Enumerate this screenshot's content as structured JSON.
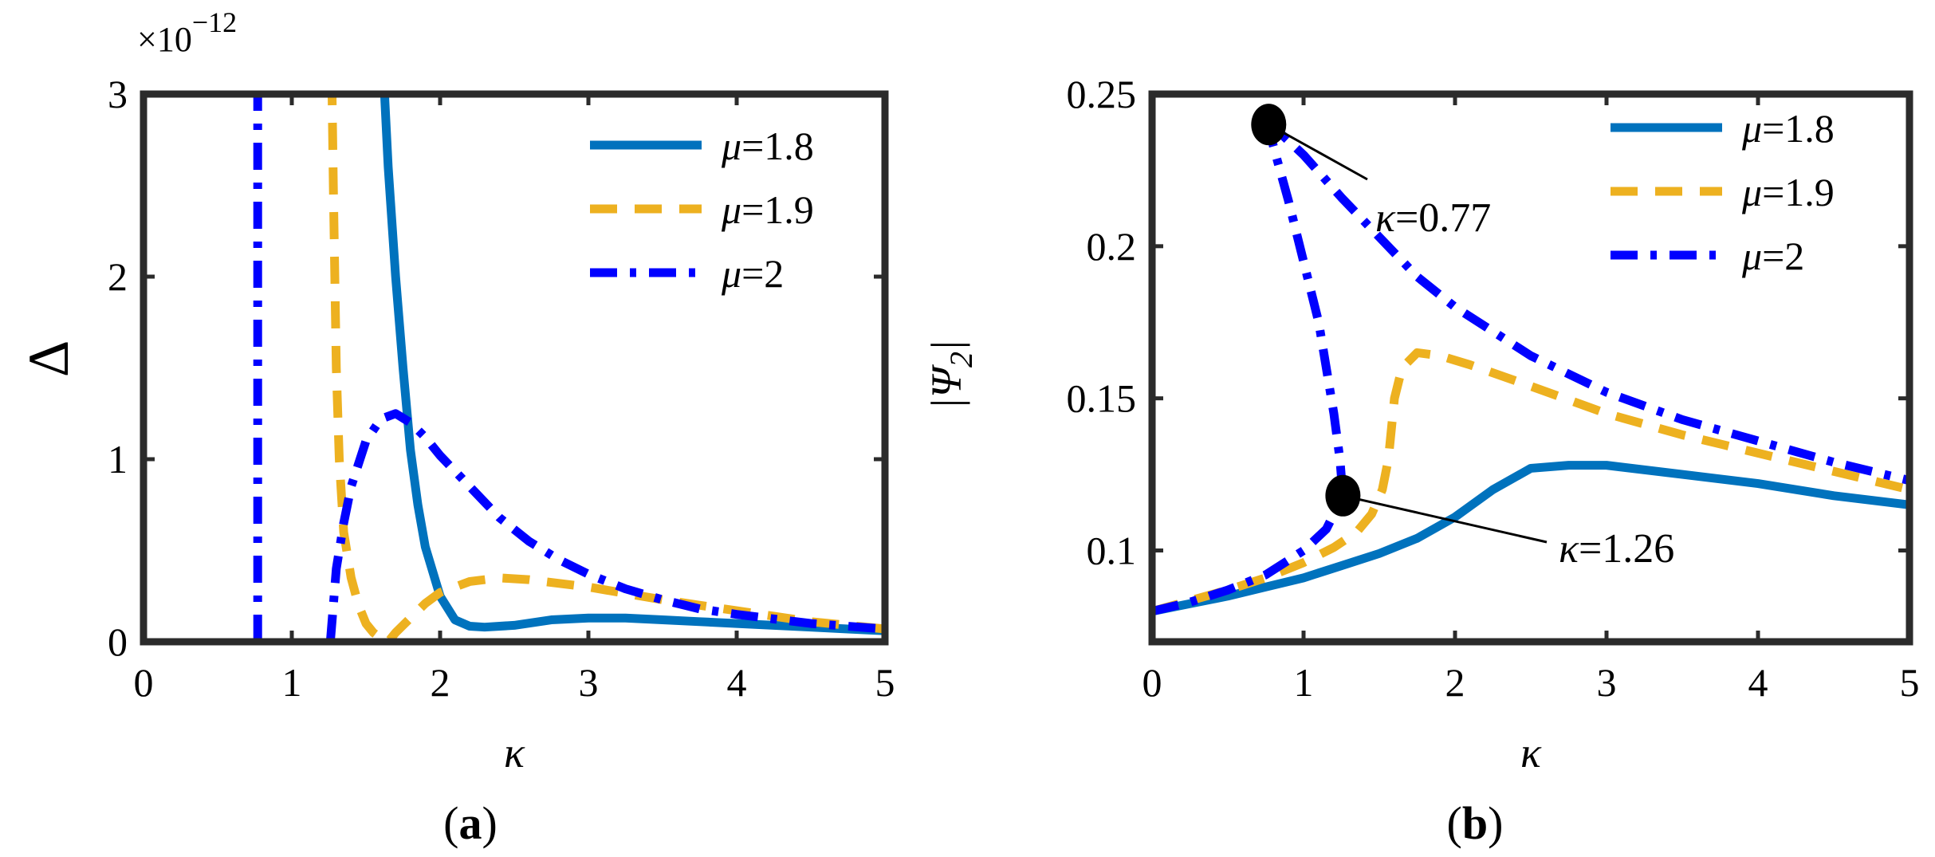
{
  "panels": [
    {
      "id": "a",
      "caption": "(a)",
      "xlabel": "κ",
      "ylabel": "Δ",
      "multiplier": "×10",
      "exponent": "−12",
      "xlim": [
        0,
        5
      ],
      "ylim": [
        0,
        3
      ],
      "xticks": [
        "0",
        "1",
        "2",
        "3",
        "4",
        "5"
      ],
      "yticks": [
        "0",
        "1",
        "2",
        "3"
      ],
      "legend": [
        "μ=1.8",
        "μ=1.9",
        "μ=2"
      ],
      "annotations": []
    },
    {
      "id": "b",
      "caption": "(b)",
      "xlabel": "κ",
      "ylabel": "|Ψ2|",
      "xlim": [
        0,
        5
      ],
      "ylim": [
        0.07,
        0.25
      ],
      "xticks": [
        "0",
        "1",
        "2",
        "3",
        "4",
        "5"
      ],
      "yticks": [
        "0.1",
        "0.15",
        "0.2",
        "0.25"
      ],
      "legend": [
        "μ=1.8",
        "μ=1.9",
        "μ=2"
      ],
      "annotations": [
        {
          "text": "κ=0.77",
          "x": 0.77,
          "y": 0.24
        },
        {
          "text": "κ=1.26",
          "x": 1.26,
          "y": 0.118
        }
      ]
    }
  ],
  "colors": {
    "mu18": "#0072BD",
    "mu19": "#EDB120",
    "mu2": "#0000FF"
  },
  "chart_data": [
    {
      "type": "line",
      "title": "",
      "xlabel": "κ",
      "ylabel": "Δ (×10^−12)",
      "xlim": [
        0,
        5
      ],
      "ylim": [
        0,
        3
      ],
      "grid": false,
      "legend_position": "top-right",
      "series": [
        {
          "name": "μ=1.8",
          "style": "solid",
          "x": [
            1.62,
            1.65,
            1.7,
            1.75,
            1.8,
            1.85,
            1.9,
            2.0,
            2.1,
            2.2,
            2.3,
            2.5,
            2.75,
            3.0,
            3.25,
            3.5,
            3.75,
            4.0,
            4.25,
            4.5,
            4.75,
            5.0
          ],
          "y": [
            3.0,
            2.6,
            2.0,
            1.5,
            1.05,
            0.75,
            0.52,
            0.25,
            0.12,
            0.085,
            0.08,
            0.09,
            0.12,
            0.13,
            0.13,
            0.12,
            0.11,
            0.1,
            0.09,
            0.08,
            0.07,
            0.06
          ]
        },
        {
          "name": "μ=1.9",
          "style": "dashed",
          "x": [
            1.27,
            1.28,
            1.29,
            1.3,
            1.32,
            1.35,
            1.4,
            1.45,
            1.5,
            1.55,
            1.6,
            1.65,
            1.7,
            1.8,
            1.9,
            2.0,
            2.2,
            2.4,
            2.6,
            3.0,
            3.5,
            4.0,
            4.5,
            5.0
          ],
          "y": [
            3.0,
            2.5,
            2.0,
            1.5,
            1.0,
            0.6,
            0.35,
            0.2,
            0.1,
            0.05,
            0.02,
            0.0,
            0.05,
            0.13,
            0.21,
            0.27,
            0.33,
            0.35,
            0.34,
            0.3,
            0.23,
            0.17,
            0.11,
            0.07
          ]
        },
        {
          "name": "μ=2",
          "style": "dash-dot",
          "x": [
            0.77,
            0.77,
            1.26,
            1.28,
            1.3,
            1.35,
            1.4,
            1.5,
            1.6,
            1.7,
            1.8,
            1.9,
            2.0,
            2.2,
            2.4,
            2.6,
            2.8,
            3.0,
            3.25,
            3.5,
            3.75,
            4.0,
            4.5,
            5.0
          ],
          "y": [
            0.0,
            3.0,
            0.0,
            0.2,
            0.4,
            0.65,
            0.85,
            1.1,
            1.22,
            1.25,
            1.2,
            1.12,
            1.02,
            0.85,
            0.68,
            0.55,
            0.45,
            0.37,
            0.29,
            0.23,
            0.18,
            0.15,
            0.1,
            0.07
          ]
        }
      ]
    },
    {
      "type": "line",
      "title": "",
      "xlabel": "κ",
      "ylabel": "|Ψ2|",
      "xlim": [
        0,
        5
      ],
      "ylim": [
        0.07,
        0.25
      ],
      "grid": false,
      "legend_position": "top-right",
      "series": [
        {
          "name": "μ=1.8",
          "style": "solid",
          "x": [
            0,
            0.25,
            0.5,
            0.75,
            1.0,
            1.25,
            1.5,
            1.75,
            2.0,
            2.25,
            2.5,
            2.75,
            3.0,
            3.5,
            4.0,
            4.5,
            5.0
          ],
          "y": [
            0.08,
            0.0825,
            0.085,
            0.088,
            0.091,
            0.095,
            0.099,
            0.104,
            0.111,
            0.12,
            0.127,
            0.128,
            0.128,
            0.125,
            0.122,
            0.118,
            0.115
          ]
        },
        {
          "name": "μ=1.9",
          "style": "dashed",
          "x": [
            0,
            0.25,
            0.5,
            0.75,
            1.0,
            1.2,
            1.35,
            1.45,
            1.52,
            1.56,
            1.58,
            1.6,
            1.65,
            1.75,
            1.9,
            2.1,
            2.5,
            3.0,
            3.5,
            4.0,
            4.5,
            5.0
          ],
          "y": [
            0.08,
            0.0835,
            0.087,
            0.091,
            0.096,
            0.101,
            0.106,
            0.112,
            0.12,
            0.13,
            0.14,
            0.15,
            0.16,
            0.165,
            0.164,
            0.161,
            0.154,
            0.145,
            0.138,
            0.132,
            0.126,
            0.12
          ]
        },
        {
          "name": "μ=2",
          "style": "dash-dot",
          "x": [
            0,
            0.25,
            0.5,
            0.75,
            1.0,
            1.15,
            1.26,
            1.24,
            1.2,
            1.15,
            1.1,
            1.0,
            0.9,
            0.8,
            0.77,
            0.85,
            1.0,
            1.25,
            1.5,
            1.75,
            2.0,
            2.5,
            3.0,
            3.5,
            4.0,
            4.5,
            5.0
          ],
          "y": [
            0.08,
            0.083,
            0.087,
            0.092,
            0.1,
            0.107,
            0.118,
            0.13,
            0.145,
            0.16,
            0.175,
            0.195,
            0.215,
            0.233,
            0.24,
            0.237,
            0.23,
            0.216,
            0.203,
            0.19,
            0.18,
            0.164,
            0.152,
            0.143,
            0.136,
            0.129,
            0.123
          ]
        }
      ]
    }
  ]
}
